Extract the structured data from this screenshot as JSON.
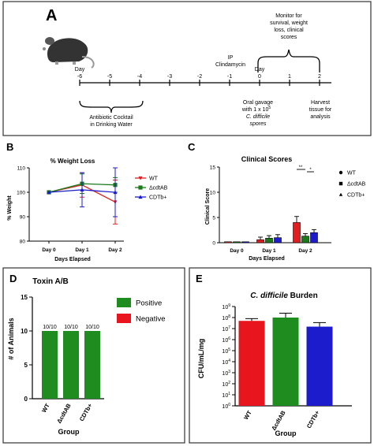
{
  "panelA": {
    "letter": "A",
    "timeline_days": [
      "Day -6",
      "-5",
      "-4",
      "-3",
      "-2",
      "-1",
      "Day 0",
      "1",
      "2"
    ],
    "antibiotic_label": [
      "Antibiotic Cocktail",
      "in Drinking Water"
    ],
    "clindamycin_label": [
      "IP",
      "Clindamycin"
    ],
    "monitor_label": [
      "Monitor for",
      "survival, weight",
      "loss, clinical",
      "scores"
    ],
    "gavage_label": [
      "Oral gavage",
      "with 1 x 10",
      "C. difficile",
      "spores"
    ],
    "gavage_exponent": "5",
    "harvest_label": [
      "Harvest",
      "tissue for",
      "analysis"
    ]
  },
  "chart_data": [
    {
      "panel": "B",
      "type": "line",
      "title": "% Weight Loss",
      "xlabel": "Days Elapsed",
      "ylabel": "% Weight",
      "categories": [
        "Day 0",
        "Day 1",
        "Day 2"
      ],
      "ylim": [
        80,
        110
      ],
      "yticks": [
        "80",
        "90",
        "100",
        "110"
      ],
      "series": [
        {
          "name": "WT",
          "color": "#e02020",
          "marker": "triangle-down",
          "values": [
            100,
            103,
            96
          ],
          "err": [
            0,
            5,
            9
          ]
        },
        {
          "name": "ΔcdtAB",
          "color": "#1a7a1a",
          "marker": "square",
          "values": [
            100,
            103.5,
            103
          ],
          "err": [
            0,
            4,
            3
          ]
        },
        {
          "name": "CDTb+",
          "color": "#1c1ccc",
          "marker": "triangle-up",
          "values": [
            100,
            101,
            100
          ],
          "err": [
            0,
            7,
            10
          ]
        }
      ]
    },
    {
      "panel": "C",
      "type": "bar",
      "title": "Clinical Scores",
      "xlabel": "Days Elapsed",
      "ylabel": "Clinical Score",
      "categories": [
        "Day 0",
        "Day 1",
        "Day 2"
      ],
      "ylim": [
        0,
        15
      ],
      "yticks": [
        "0",
        "5",
        "10",
        "15"
      ],
      "series": [
        {
          "name": "WT",
          "color": "#e02020",
          "marker": "circle",
          "values": [
            0,
            0.6,
            4
          ],
          "err": [
            0,
            0.5,
            1.2
          ]
        },
        {
          "name": "ΔcdtAB",
          "color": "#1a7a1a",
          "marker": "square",
          "values": [
            0,
            0.9,
            1.3
          ],
          "err": [
            0,
            0.5,
            0.5
          ]
        },
        {
          "name": "CDTb+",
          "color": "#1c1ccc",
          "marker": "triangle-up",
          "values": [
            0,
            1.0,
            2.0
          ],
          "err": [
            0,
            0.6,
            0.6
          ]
        }
      ],
      "significance": [
        "**",
        "*"
      ]
    },
    {
      "panel": "D",
      "type": "bar",
      "title": "Toxin A/B",
      "xlabel": "Group",
      "ylabel": "# of Animals",
      "categories": [
        "WT",
        "ΔcdtAB",
        "CDTb+"
      ],
      "ylim": [
        0,
        15
      ],
      "yticks": [
        "0",
        "5",
        "10",
        "15"
      ],
      "series": [
        {
          "name": "Positive",
          "color": "#1e8c1e",
          "values": [
            10,
            10,
            10
          ]
        },
        {
          "name": "Negative",
          "color": "#e8141e",
          "values": [
            0,
            0,
            0
          ]
        }
      ],
      "bar_labels": [
        "10/10",
        "10/10",
        "10/10"
      ]
    },
    {
      "panel": "E",
      "type": "bar",
      "title": "C. difficile Burden",
      "title_italic": "C. difficile",
      "title_rest": " Burden",
      "xlabel": "Group",
      "ylabel": "CFU/mL/mg",
      "yscale": "log",
      "categories": [
        "WT",
        "ΔcdtAB",
        "CDTb+"
      ],
      "ylim": [
        1,
        1000000000
      ],
      "ytick_exponents": [
        "0",
        "1",
        "2",
        "3",
        "4",
        "5",
        "6",
        "7",
        "8",
        "9"
      ],
      "series": [
        {
          "name": "",
          "colors": [
            "#e8141e",
            "#1e8c1e",
            "#1c1ccc"
          ],
          "values": [
            50000000,
            100000000,
            15000000
          ],
          "err_top": [
            80000000,
            250000000,
            35000000
          ]
        }
      ]
    }
  ]
}
